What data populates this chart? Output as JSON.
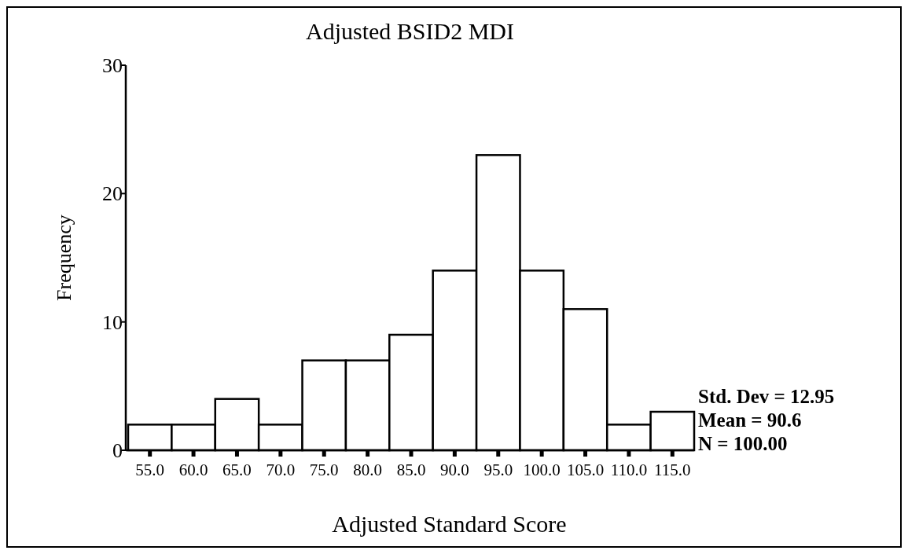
{
  "chart_data": {
    "type": "histogram",
    "title": "Adjusted BSID2 MDI",
    "xlabel": "Adjusted Standard Score",
    "ylabel": "Frequency",
    "bins": [
      52.5,
      57.5,
      62.5,
      67.5,
      72.5,
      77.5,
      82.5,
      87.5,
      92.5,
      97.5,
      102.5,
      107.5,
      112.5,
      117.5
    ],
    "values": [
      2,
      2,
      4,
      2,
      7,
      7,
      9,
      14,
      23,
      14,
      11,
      2,
      3
    ],
    "color": "#ffffff",
    "xlim": [
      52.5,
      117.5
    ],
    "xticks": [
      {
        "value": 55,
        "label": "55.0"
      },
      {
        "value": 60,
        "label": "60.0"
      },
      {
        "value": 65,
        "label": "65.0"
      },
      {
        "value": 70,
        "label": "70.0"
      },
      {
        "value": 75,
        "label": "75.0"
      },
      {
        "value": 80,
        "label": "80.0"
      },
      {
        "value": 85,
        "label": "85.0"
      },
      {
        "value": 90,
        "label": "90.0"
      },
      {
        "value": 95,
        "label": "95.0"
      },
      {
        "value": 100,
        "label": "100.0"
      },
      {
        "value": 105,
        "label": "105.0"
      },
      {
        "value": 110,
        "label": "110.0"
      },
      {
        "value": 115,
        "label": "115.0"
      }
    ],
    "ylim": [
      0,
      30
    ],
    "yticks": [
      0,
      10,
      20,
      30
    ],
    "annotations": [
      "Std. Dev = 12.95",
      "Mean = 90.6",
      "N = 100.00"
    ],
    "grid": false
  }
}
